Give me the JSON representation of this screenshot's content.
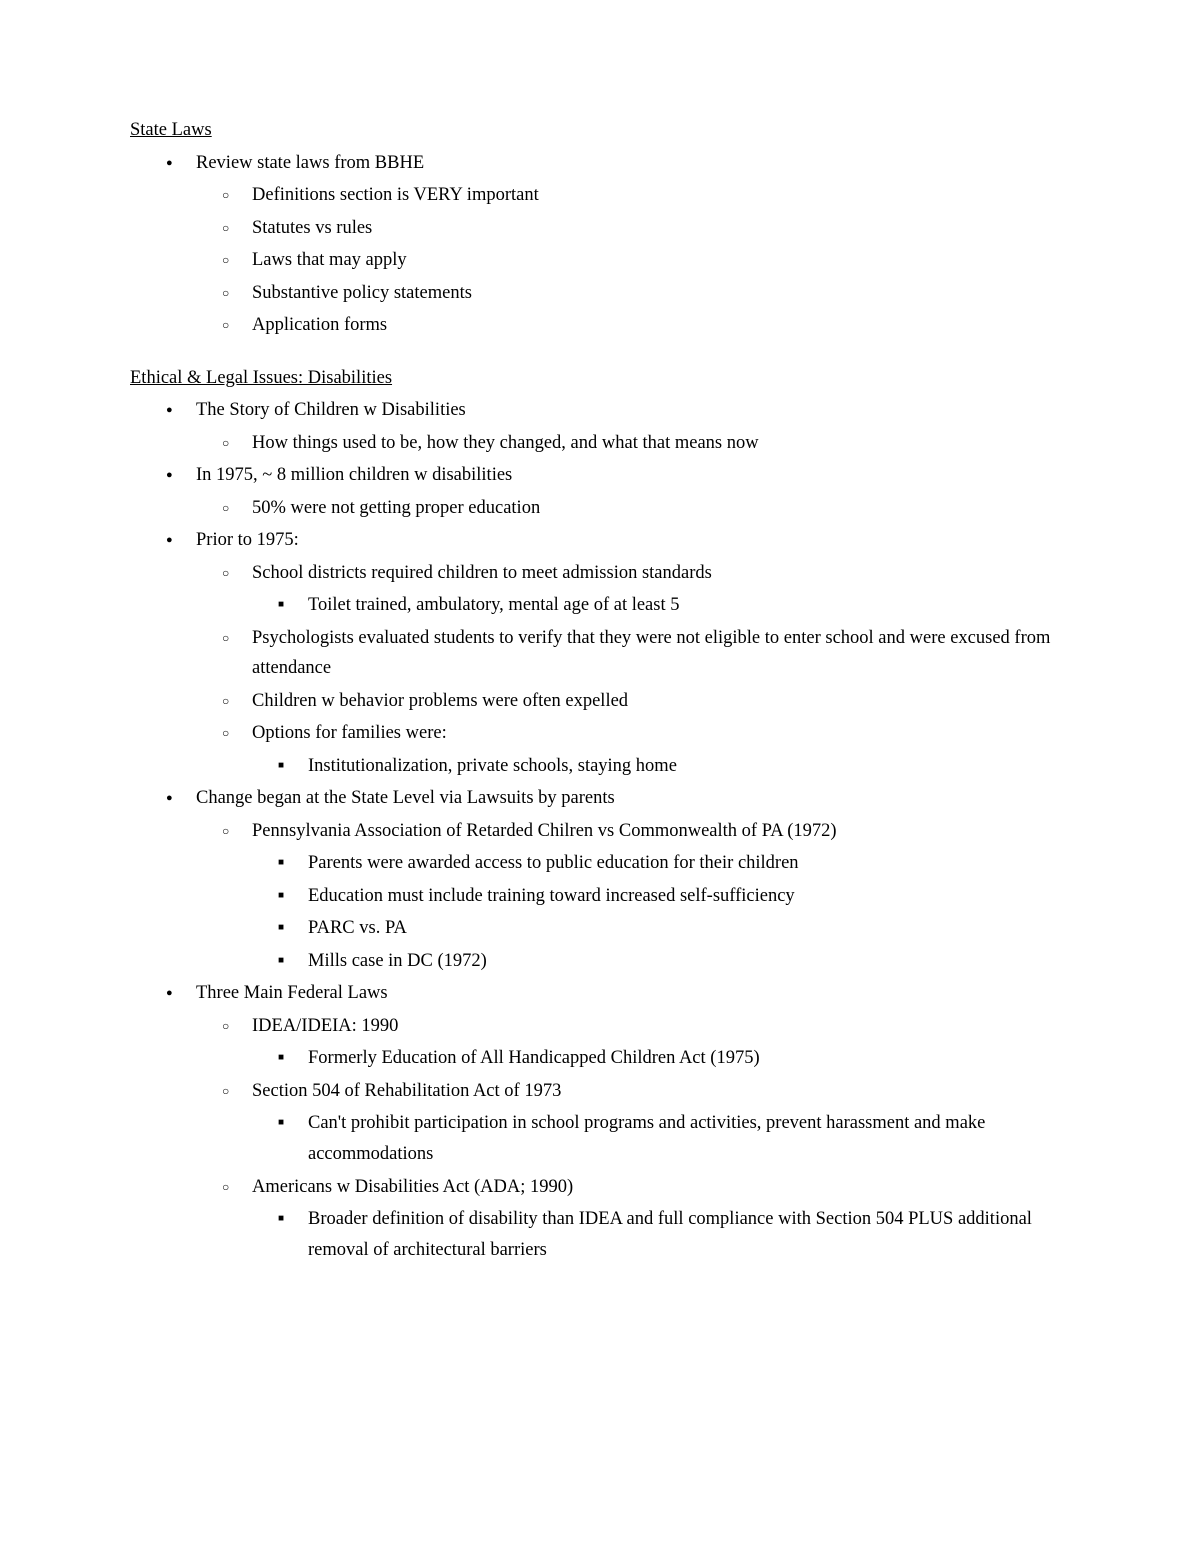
{
  "sections": [
    {
      "heading": "State Laws",
      "items": [
        {
          "text": "Review state laws from BBHE",
          "children": [
            {
              "text": "Definitions section is VERY important"
            },
            {
              "text": "Statutes vs rules"
            },
            {
              "text": "Laws that may apply"
            },
            {
              "text": "Substantive policy statements"
            },
            {
              "text": "Application forms"
            }
          ]
        }
      ]
    },
    {
      "heading": "Ethical & Legal Issues: Disabilities",
      "items": [
        {
          "text": "The Story of Children w Disabilities",
          "children": [
            {
              "text": "How things used to be, how they changed, and what that means now"
            }
          ]
        },
        {
          "text": "In 1975, ~ 8 million children w disabilities",
          "children": [
            {
              "text": "50% were not getting proper education"
            }
          ]
        },
        {
          "text": "Prior to 1975:",
          "children": [
            {
              "text": "School districts required children to meet admission standards",
              "children": [
                {
                  "text": "Toilet trained, ambulatory, mental age of at least 5"
                }
              ]
            },
            {
              "text": "Psychologists evaluated students to verify that they were not eligible to enter school and were excused from attendance"
            },
            {
              "text": "Children w behavior problems were often expelled"
            },
            {
              "text": "Options for families were:",
              "children": [
                {
                  "text": "Institutionalization, private schools, staying home"
                }
              ]
            }
          ]
        },
        {
          "text": "Change began at the State Level via Lawsuits by parents",
          "children": [
            {
              "text": "Pennsylvania Association of Retarded Chilren vs Commonwealth of PA (1972)",
              "children": [
                {
                  "text": "Parents were awarded access to public education for their children"
                },
                {
                  "text": "Education must include training toward increased self-sufficiency"
                },
                {
                  "text": "PARC vs. PA"
                },
                {
                  "text": "Mills case in DC (1972)"
                }
              ]
            }
          ]
        },
        {
          "text": "Three Main Federal Laws",
          "children": [
            {
              "text": "IDEA/IDEIA: 1990",
              "children": [
                {
                  "text": "Formerly Education of All Handicapped Children Act (1975)"
                }
              ]
            },
            {
              "text": "Section 504 of Rehabilitation Act of 1973",
              "children": [
                {
                  "text": "Can't prohibit participation in school programs and activities, prevent harassment and make accommodations"
                }
              ]
            },
            {
              "text": "Americans w Disabilities Act (ADA; 1990)",
              "children": [
                {
                  "text": "Broader definition of disability than IDEA and full compliance with Section 504 PLUS additional removal of architectural barriers"
                }
              ]
            }
          ]
        }
      ]
    }
  ]
}
